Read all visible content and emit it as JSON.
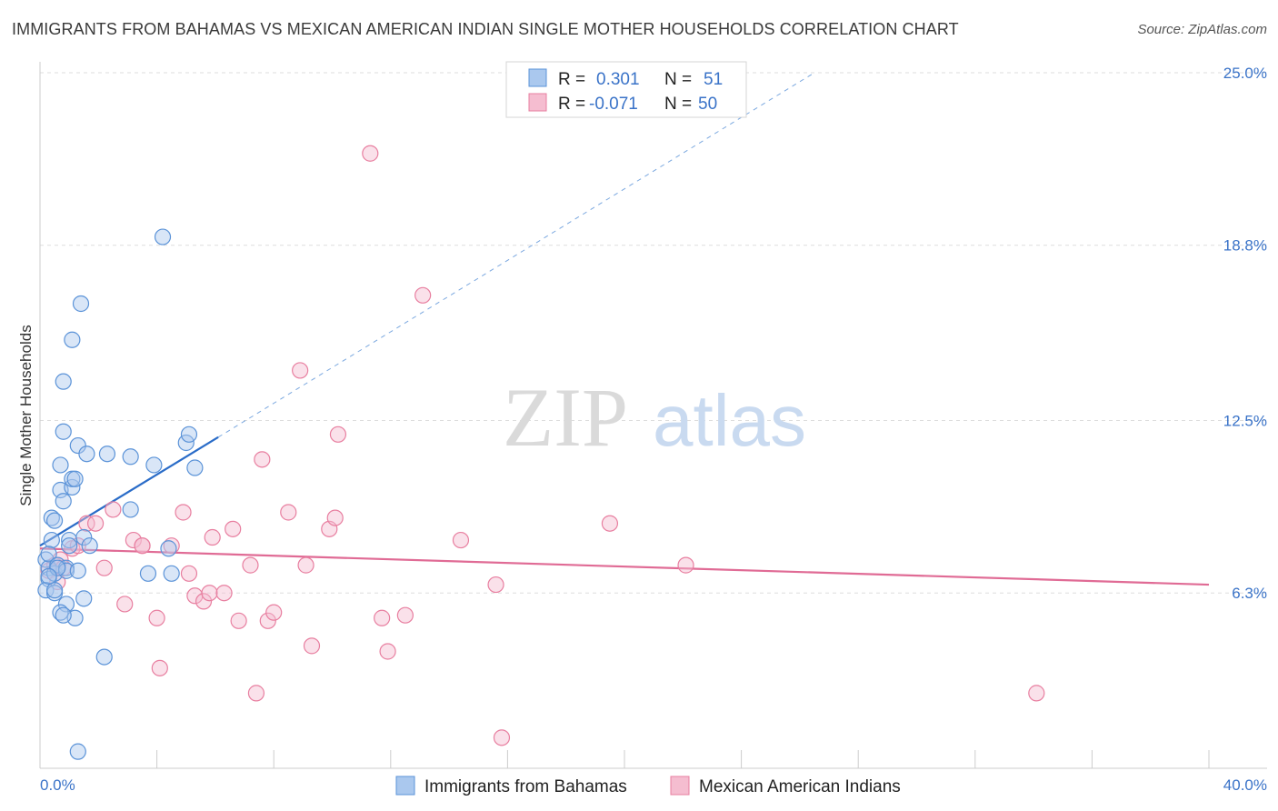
{
  "header": {
    "title": "IMMIGRANTS FROM BAHAMAS VS MEXICAN AMERICAN INDIAN SINGLE MOTHER HOUSEHOLDS CORRELATION CHART",
    "source": "Source: ZipAtlas.com"
  },
  "watermark": {
    "zip": "ZIP",
    "atlas": "atlas"
  },
  "colors": {
    "blue": "#5b93d8",
    "blue_fill": "#aac8ee",
    "blue_line": "#2a6cc8",
    "pink": "#e87fa0",
    "pink_fill": "#f5bdd0",
    "pink_line": "#e06b95",
    "grid": "#dddddd",
    "tick_label": "#3a73c8"
  },
  "legend": {
    "rows": [
      {
        "r_label": "R =",
        "r_value": "0.301",
        "n_label": "N =",
        "n_value": "51"
      },
      {
        "r_label": "R =",
        "r_value": "-0.071",
        "n_label": "N =",
        "n_value": "50"
      }
    ]
  },
  "chart_data": {
    "type": "scatter",
    "title": "IMMIGRANTS FROM BAHAMAS VS MEXICAN AMERICAN INDIAN SINGLE MOTHER HOUSEHOLDS CORRELATION CHART",
    "xlabel": "",
    "ylabel": "Single Mother Households",
    "xlim": [
      0,
      40
    ],
    "ylim": [
      0,
      25
    ],
    "x_tick_labels": [
      "0.0%",
      "40.0%"
    ],
    "y_ticks": [
      6.3,
      12.5,
      18.8,
      25.0
    ],
    "y_tick_labels": [
      "6.3%",
      "12.5%",
      "18.8%",
      "25.0%"
    ],
    "grid": true,
    "legend_position": "top-center",
    "series": [
      {
        "name": "Immigrants from Bahamas",
        "color": "#5b93d8",
        "r": 0.301,
        "n": 51,
        "trend": {
          "x": [
            0,
            6.1
          ],
          "y": [
            8.0,
            11.9
          ],
          "extended_to": [
            26.5,
            25.0
          ]
        },
        "points": [
          [
            0.2,
            7.5
          ],
          [
            0.3,
            7.2
          ],
          [
            0.3,
            6.8
          ],
          [
            0.2,
            6.4
          ],
          [
            0.4,
            8.2
          ],
          [
            0.3,
            7.7
          ],
          [
            0.5,
            7.0
          ],
          [
            0.6,
            7.3
          ],
          [
            0.5,
            6.3
          ],
          [
            0.4,
            9.0
          ],
          [
            0.5,
            8.9
          ],
          [
            0.7,
            10.0
          ],
          [
            0.8,
            9.6
          ],
          [
            0.7,
            10.9
          ],
          [
            0.8,
            12.1
          ],
          [
            0.8,
            13.9
          ],
          [
            1.0,
            8.2
          ],
          [
            1.0,
            8.0
          ],
          [
            0.9,
            7.2
          ],
          [
            0.9,
            7.1
          ],
          [
            0.9,
            5.9
          ],
          [
            0.7,
            5.6
          ],
          [
            1.1,
            10.1
          ],
          [
            1.1,
            10.4
          ],
          [
            1.2,
            10.4
          ],
          [
            1.3,
            11.6
          ],
          [
            1.1,
            15.4
          ],
          [
            1.4,
            16.7
          ],
          [
            1.5,
            8.3
          ],
          [
            1.5,
            6.1
          ],
          [
            1.6,
            11.3
          ],
          [
            1.7,
            8.0
          ],
          [
            1.2,
            5.4
          ],
          [
            1.3,
            7.1
          ],
          [
            2.2,
            4.0
          ],
          [
            2.3,
            11.3
          ],
          [
            3.1,
            11.2
          ],
          [
            3.1,
            9.3
          ],
          [
            3.7,
            7.0
          ],
          [
            3.9,
            10.9
          ],
          [
            4.2,
            19.1
          ],
          [
            4.4,
            7.9
          ],
          [
            4.5,
            7.0
          ],
          [
            5.0,
            11.7
          ],
          [
            5.1,
            12.0
          ],
          [
            5.3,
            10.8
          ],
          [
            1.3,
            0.6
          ],
          [
            0.6,
            7.2
          ],
          [
            0.5,
            6.4
          ],
          [
            0.3,
            6.9
          ],
          [
            0.8,
            5.5
          ]
        ]
      },
      {
        "name": "Mexican American Indians",
        "color": "#e87fa0",
        "r": -0.071,
        "n": 50,
        "trend": {
          "x": [
            0,
            40
          ],
          "y": [
            7.9,
            6.6
          ]
        },
        "points": [
          [
            0.3,
            7.1
          ],
          [
            0.5,
            7.3
          ],
          [
            0.6,
            6.7
          ],
          [
            0.7,
            7.5
          ],
          [
            0.8,
            7.2
          ],
          [
            1.1,
            7.9
          ],
          [
            1.3,
            8.0
          ],
          [
            1.6,
            8.8
          ],
          [
            1.9,
            8.8
          ],
          [
            2.2,
            7.2
          ],
          [
            2.5,
            9.3
          ],
          [
            2.9,
            5.9
          ],
          [
            3.2,
            8.2
          ],
          [
            3.5,
            8.0
          ],
          [
            4.0,
            5.4
          ],
          [
            4.1,
            3.6
          ],
          [
            4.5,
            8.0
          ],
          [
            4.9,
            9.2
          ],
          [
            5.1,
            7.0
          ],
          [
            5.3,
            6.2
          ],
          [
            5.6,
            6.0
          ],
          [
            5.8,
            6.3
          ],
          [
            5.9,
            8.3
          ],
          [
            6.3,
            6.3
          ],
          [
            6.6,
            8.6
          ],
          [
            6.8,
            5.3
          ],
          [
            7.2,
            7.3
          ],
          [
            7.4,
            2.7
          ],
          [
            7.6,
            11.1
          ],
          [
            7.8,
            5.3
          ],
          [
            8.0,
            5.6
          ],
          [
            8.5,
            9.2
          ],
          [
            8.9,
            14.3
          ],
          [
            9.1,
            7.3
          ],
          [
            9.3,
            4.4
          ],
          [
            9.9,
            8.6
          ],
          [
            10.1,
            9.0
          ],
          [
            10.2,
            12.0
          ],
          [
            11.3,
            22.1
          ],
          [
            11.7,
            5.4
          ],
          [
            11.9,
            4.2
          ],
          [
            12.5,
            5.5
          ],
          [
            13.1,
            17.0
          ],
          [
            14.4,
            8.2
          ],
          [
            15.6,
            6.6
          ],
          [
            15.8,
            1.1
          ],
          [
            19.5,
            8.8
          ],
          [
            22.1,
            7.3
          ],
          [
            34.1,
            2.7
          ],
          [
            3.5,
            8.0
          ]
        ]
      }
    ]
  }
}
